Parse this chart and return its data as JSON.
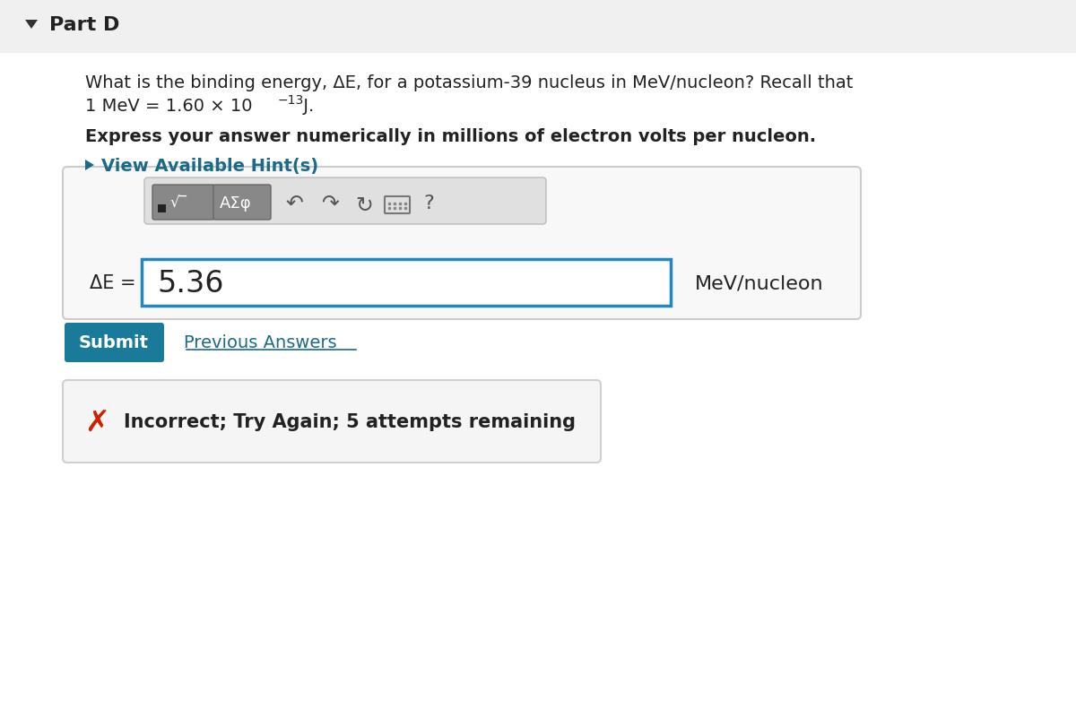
{
  "bg_color": "#ffffff",
  "header_bg": "#f0f0f0",
  "header_text": "Part D",
  "triangle_color": "#333333",
  "question_line1": "What is the binding energy, ΔE, for a potassium-39 nucleus in MeV/nucleon? Recall that",
  "question_line2_main": "1 MeV = 1.60 × 10",
  "question_line2_sup": "−13",
  "question_line2_end": " J.",
  "bold_line": "Express your answer numerically in millions of electron volts per nucleon.",
  "hint_text": "View Available Hint(s)",
  "hint_color": "#1a6b8a",
  "delta_e_label": "ΔE =",
  "answer_value": "5.36",
  "units_text": "MeV/nucleon",
  "submit_text": "Submit",
  "submit_bg": "#1a7a9a",
  "submit_color": "#ffffff",
  "prev_answers_text": "Previous Answers",
  "prev_answers_color": "#1a6b8a",
  "incorrect_text": "Incorrect; Try Again; 5 attempts remaining",
  "incorrect_color": "#cc2200",
  "input_border_color": "#2288bb",
  "outer_box_color": "#cccccc"
}
